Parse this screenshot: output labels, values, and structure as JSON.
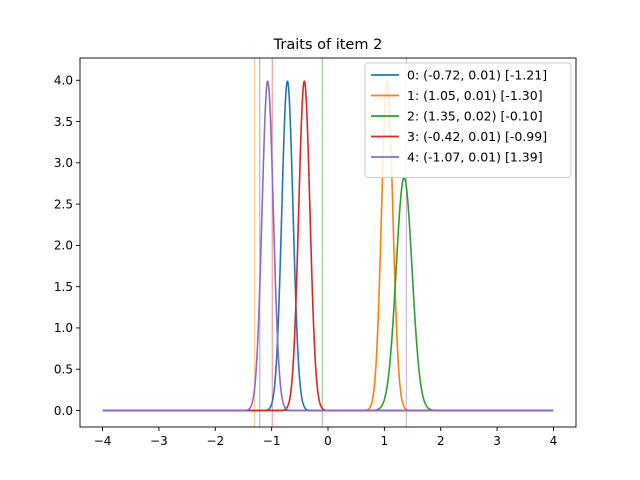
{
  "chart_data": {
    "type": "line",
    "title": "Traits of item 2",
    "xlabel": "",
    "ylabel": "",
    "xlim": [
      -4.4,
      4.4
    ],
    "ylim": [
      -0.2,
      4.27
    ],
    "x_ticks": [
      -4,
      -3,
      -2,
      -1,
      0,
      1,
      2,
      3,
      4
    ],
    "x_tick_labels": [
      "−4",
      "−3",
      "−2",
      "−1",
      "0",
      "1",
      "2",
      "3",
      "4"
    ],
    "y_ticks": [
      0.0,
      0.5,
      1.0,
      1.5,
      2.0,
      2.5,
      3.0,
      3.5,
      4.0
    ],
    "y_tick_labels": [
      "0.0",
      "0.5",
      "1.0",
      "1.5",
      "2.0",
      "2.5",
      "3.0",
      "3.5",
      "4.0"
    ],
    "x_range": [
      -4,
      4
    ],
    "legend_position": "top-right",
    "grid": false,
    "series": [
      {
        "name": "0: (-0.72, 0.01) [-1.21]",
        "mean": -0.72,
        "variance": 0.01,
        "marker": -1.21,
        "color": "#1f77b4"
      },
      {
        "name": "1: (1.05, 0.01) [-1.30]",
        "mean": 1.05,
        "variance": 0.01,
        "marker": -1.3,
        "color": "#ff7f0e"
      },
      {
        "name": "2: (1.35, 0.02) [-0.10]",
        "mean": 1.35,
        "variance": 0.02,
        "marker": -0.1,
        "color": "#2ca02c"
      },
      {
        "name": "3: (-0.42, 0.01) [-0.99]",
        "mean": -0.42,
        "variance": 0.01,
        "marker": -0.99,
        "color": "#d62728"
      },
      {
        "name": "4: (-1.07, 0.01) [1.39]",
        "mean": -1.07,
        "variance": 0.01,
        "marker": 1.39,
        "color": "#9467bd"
      }
    ]
  }
}
